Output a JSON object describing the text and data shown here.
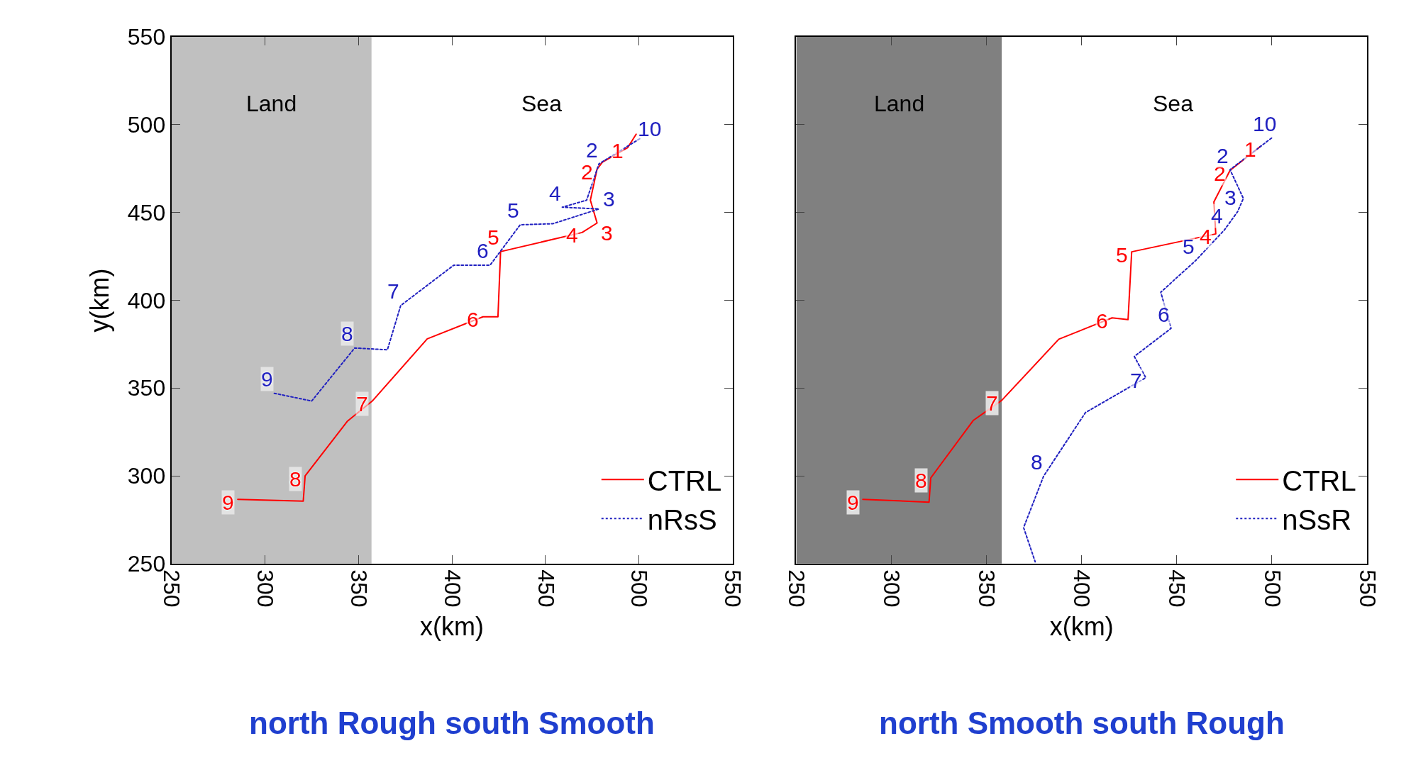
{
  "chart_data": [
    {
      "type": "line",
      "title": "north Rough south Smooth",
      "xlabel": "x(km)",
      "ylabel": "y(km)",
      "xlim": [
        250,
        550
      ],
      "ylim": [
        250,
        550
      ],
      "xticks": [
        250,
        300,
        350,
        400,
        450,
        500,
        550
      ],
      "yticks": [
        250,
        300,
        350,
        400,
        450,
        500,
        550
      ],
      "grid": false,
      "legend": "bottom right",
      "marker": "none",
      "bands": [
        {
          "axis": "x",
          "from": 250,
          "to": 357,
          "label": "Land",
          "color": "#c0c0c0"
        }
      ],
      "annotations": [
        "Sea",
        {
          "text": "1",
          "x": 494,
          "y": 487
        },
        {
          "text": "2",
          "x": 477.6,
          "y": 474.8
        },
        {
          "text": "3",
          "x": 477.6,
          "y": 444
        },
        {
          "text": "4",
          "x": 469.6,
          "y": 438.6
        },
        {
          "text": "5",
          "x": 426,
          "y": 427.7
        },
        {
          "text": "6",
          "x": 416.6,
          "y": 390.6
        },
        {
          "text": "7",
          "x": 357.4,
          "y": 342.6
        },
        {
          "text": "8",
          "x": 321.5,
          "y": 300
        },
        {
          "text": "9",
          "x": 285.5,
          "y": 286.6
        },
        {
          "text": "10",
          "x": 500.4,
          "y": 492
        },
        {
          "text": "2",
          "x": 478.6,
          "y": 477.7
        },
        {
          "text": "4",
          "x": 459,
          "y": 453
        },
        {
          "text": "3",
          "x": 478.6,
          "y": 452
        },
        {
          "text": "5",
          "x": 436.5,
          "y": 443
        },
        {
          "text": "6",
          "x": 420.4,
          "y": 420
        },
        {
          "text": "7",
          "x": 372.6,
          "y": 397
        },
        {
          "text": "8",
          "x": 348,
          "y": 372.8
        },
        {
          "text": "9",
          "x": 305,
          "y": 347
        }
      ],
      "series": [
        {
          "name": "CTRL",
          "color": "#ff0000",
          "line_style": "solid",
          "x": [
            498.5,
            494,
            480.5,
            477.6,
            474,
            477.6,
            469.6,
            426,
            424.6,
            416.6,
            386.8,
            357.4,
            344,
            321.5,
            320.5,
            285.5
          ],
          "values": [
            494.6,
            487,
            478.7,
            474.8,
            457,
            444,
            438.6,
            427.7,
            390.6,
            390.6,
            378,
            342.6,
            331,
            300,
            285.6,
            286.6
          ]
        },
        {
          "name": "nRsS",
          "color": "#2020c0",
          "line_style": "dotted",
          "x": [
            500.4,
            478.6,
            472,
            459,
            478.6,
            454,
            436.5,
            420.4,
            401,
            372.6,
            365.5,
            348,
            325,
            305
          ],
          "values": [
            492,
            477.7,
            457,
            453,
            452,
            443.6,
            443,
            420,
            420,
            397,
            371.8,
            372.8,
            342.6,
            347
          ]
        }
      ]
    },
    {
      "type": "line",
      "title": "north Smooth south Rough",
      "xlabel": "x(km)",
      "xlim": [
        250,
        550
      ],
      "ylim": [
        250,
        550
      ],
      "xticks": [
        250,
        300,
        350,
        400,
        450,
        500,
        550
      ],
      "yticks": [
        250,
        300,
        350,
        400,
        450,
        500,
        550
      ],
      "tick_labels": "x",
      "grid": false,
      "legend": "bottom right",
      "marker": "none",
      "bands": [
        {
          "axis": "x",
          "from": 250,
          "to": 358,
          "label": "Land",
          "color": "#808080"
        }
      ],
      "annotations": [
        "Sea",
        {
          "text": "1",
          "x": 494,
          "y": 487.6
        },
        {
          "text": "2",
          "x": 478,
          "y": 474
        },
        {
          "text": "4",
          "x": 470.5,
          "y": 437.8
        },
        {
          "text": "5",
          "x": 426.3,
          "y": 427.6
        },
        {
          "text": "6",
          "x": 416,
          "y": 390
        },
        {
          "text": "7",
          "x": 358,
          "y": 343
        },
        {
          "text": "8",
          "x": 320.7,
          "y": 298.8
        },
        {
          "text": "9",
          "x": 285,
          "y": 286.6
        },
        {
          "text": "10",
          "x": 499.8,
          "y": 492.4
        },
        {
          "text": "2",
          "x": 478,
          "y": 474.4
        },
        {
          "text": "3",
          "x": 482,
          "y": 450.5
        },
        {
          "text": "4",
          "x": 475,
          "y": 440
        },
        {
          "text": "5",
          "x": 460,
          "y": 422.7
        },
        {
          "text": "6",
          "x": 447,
          "y": 384
        },
        {
          "text": "7",
          "x": 433.7,
          "y": 355.9
        },
        {
          "text": "8",
          "x": 380,
          "y": 299.8
        }
      ],
      "series": [
        {
          "name": "CTRL",
          "color": "#ff0000",
          "line_style": "solid",
          "x": [
            494,
            478,
            469.5,
            470.5,
            426.3,
            424.4,
            416,
            388,
            358,
            343,
            320.7,
            319.8,
            285
          ],
          "values": [
            487.6,
            474,
            456,
            437.8,
            427.6,
            389,
            390,
            377.8,
            343,
            331.5,
            298.8,
            285,
            286.6
          ]
        },
        {
          "name": "nSsR",
          "color": "#2020c0",
          "line_style": "dotted",
          "x": [
            499.8,
            478,
            485,
            482,
            475,
            460,
            441.6,
            447,
            427.7,
            433.7,
            402,
            380,
            369.5,
            375.6
          ],
          "values": [
            492.4,
            474.4,
            458,
            450.5,
            440,
            422.7,
            404.6,
            384,
            368,
            355.9,
            336,
            299.8,
            270.5,
            251
          ]
        }
      ]
    }
  ]
}
